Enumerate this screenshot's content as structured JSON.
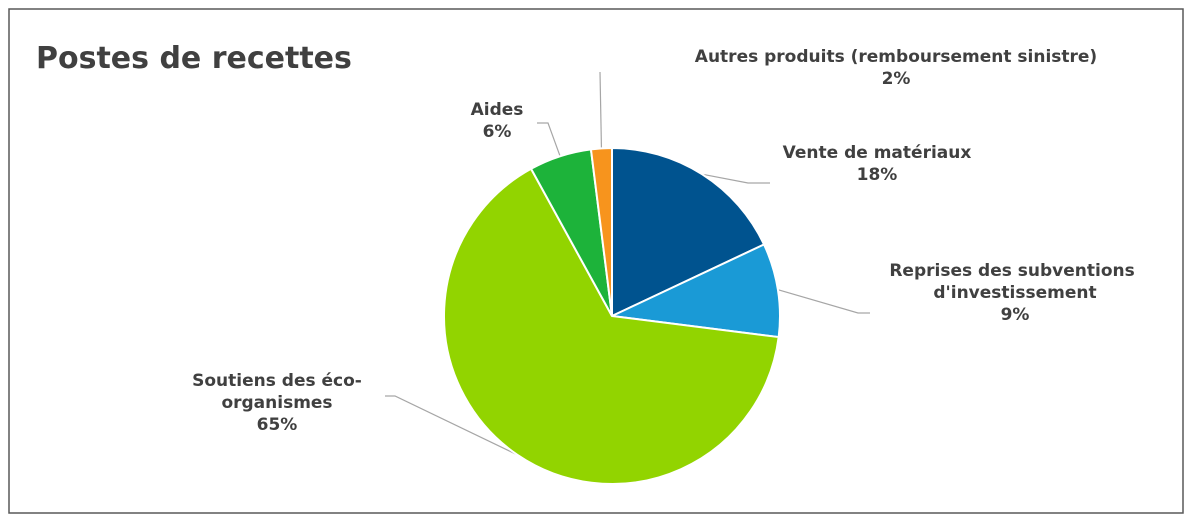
{
  "chart_data": {
    "type": "pie",
    "title": "Postes de recettes",
    "categories": [
      "Vente de matériaux",
      "Reprises des subventions d'investissement",
      "Soutiens des éco-organismes",
      "Aides",
      "Autres produits (remboursement sinistre)"
    ],
    "values": [
      18,
      9,
      65,
      6,
      2
    ],
    "value_labels": [
      "18%",
      "9%",
      "65%",
      "6%",
      "2%"
    ],
    "colors": [
      "#00538f",
      "#1a9ad6",
      "#92d400",
      "#1db33a",
      "#f7941d"
    ]
  }
}
